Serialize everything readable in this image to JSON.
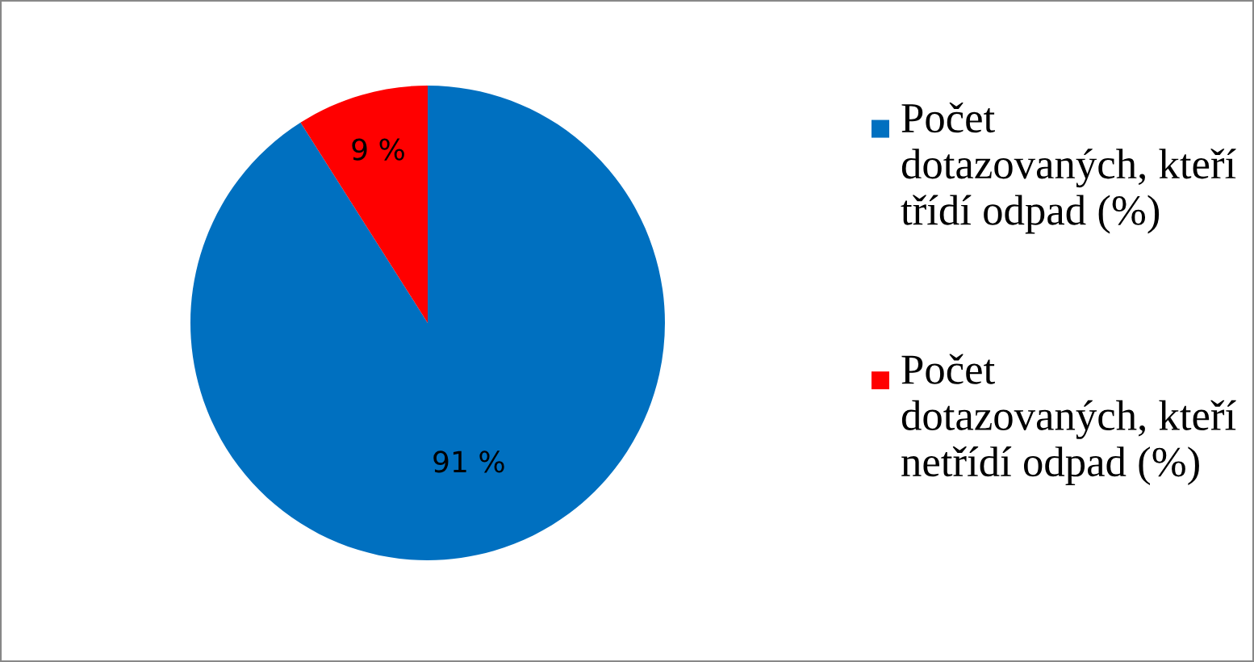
{
  "chart_data": {
    "type": "pie",
    "categories": [
      "Počet dotazovaných, kteří třídí odpad (%)",
      "Počet dotazovaných, kteří netřídí odpad (%)"
    ],
    "values": [
      91,
      9
    ],
    "colors": [
      "#0070c0",
      "#ff0000"
    ],
    "value_labels": [
      "91 %",
      "9 %"
    ],
    "legend": "right"
  }
}
